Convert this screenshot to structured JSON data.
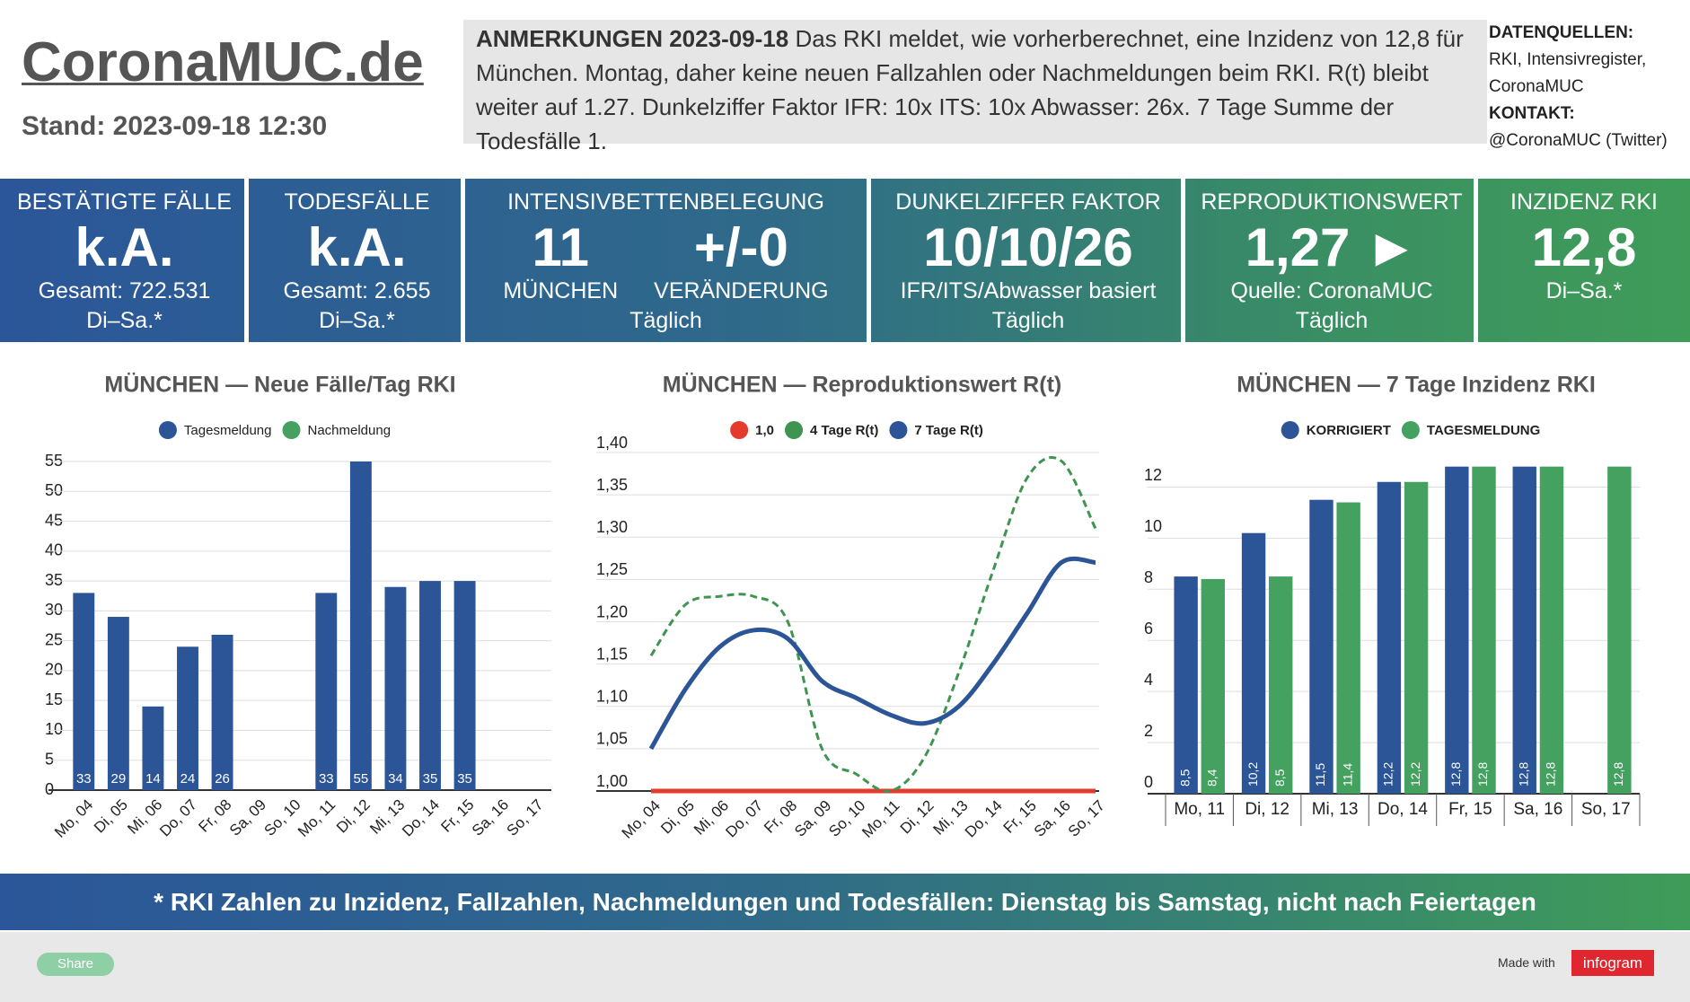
{
  "header": {
    "title": "CoronaMUC.de",
    "stand": "Stand: 2023-09-18 12:30"
  },
  "notes": {
    "heading": "ANMERKUNGEN 2023-09-18",
    "text": "Das RKI meldet, wie vorherberechnet, eine Inzidenz von 12,8 für München. Montag, daher keine neuen Fallzahlen oder Nachmeldungen beim RKI. R(t) bleibt weiter auf 1.27. Dunkelziffer Faktor IFR: 10x ITS: 10x Abwasser: 26x. 7 Tage Summe der Todesfälle 1."
  },
  "sources": {
    "label": "DATENQUELLEN:",
    "text": "RKI, Intensivregister, CoronaMUC",
    "contact_label": "KONTAKT:",
    "contact": "@CoronaMUC (Twitter)"
  },
  "tiles": [
    {
      "title": "BESTÄTIGTE FÄLLE",
      "value": "k.A.",
      "lines": [
        "Gesamt: 722.531",
        "Di–Sa.*"
      ]
    },
    {
      "title": "TODESFÄLLE",
      "value": "k.A.",
      "lines": [
        "Gesamt: 2.655",
        "Di–Sa.*"
      ]
    },
    {
      "title": "INTENSIVBETTENBELEGUNG",
      "values": [
        {
          "value": "11",
          "label": "MÜNCHEN"
        },
        {
          "value": "+/-0",
          "label": "VERÄNDERUNG"
        }
      ],
      "lines": [
        "Täglich"
      ]
    },
    {
      "title": "DUNKELZIFFER FAKTOR",
      "value": "10/10/26",
      "lines": [
        "IFR/ITS/Abwasser basiert",
        "Täglich"
      ]
    },
    {
      "title": "REPRODUKTIONSWERT",
      "value": "1,27 ►",
      "lines": [
        "Quelle: CoronaMUC",
        "Täglich"
      ]
    },
    {
      "title": "INZIDENZ RKI",
      "value": "12,8",
      "lines": [
        "Di–Sa.*"
      ]
    }
  ],
  "chart_data": [
    {
      "type": "bar",
      "title": "MÜNCHEN — Neue Fälle/Tag RKI",
      "stacked": true,
      "grid": true,
      "categories": [
        "Mo, 04",
        "Di, 05",
        "Mi, 06",
        "Do, 07",
        "Fr, 08",
        "Sa, 09",
        "So, 10",
        "Mo, 11",
        "Di, 12",
        "Mi, 13",
        "Do, 14",
        "Fr, 15",
        "Sa, 16",
        "So, 17"
      ],
      "series": [
        {
          "name": "Tagesmeldung",
          "color": "#2c5597",
          "values": [
            33,
            29,
            14,
            24,
            26,
            null,
            null,
            33,
            55,
            34,
            35,
            35,
            null,
            null
          ]
        },
        {
          "name": "Nachmeldung",
          "color": "#45a160",
          "values": [
            null,
            null,
            null,
            null,
            null,
            null,
            null,
            null,
            null,
            null,
            null,
            null,
            null,
            null
          ]
        }
      ],
      "ylim": [
        0,
        55
      ],
      "yticks": [
        0,
        5,
        10,
        15,
        20,
        25,
        30,
        35,
        40,
        45,
        50,
        55
      ]
    },
    {
      "type": "line",
      "title": "MÜNCHEN — Reproduktionswert R(t)",
      "grid": true,
      "categories": [
        "Mo, 04",
        "Di, 05",
        "Mi, 06",
        "Do, 07",
        "Fr, 08",
        "Sa, 09",
        "So, 10",
        "Mo, 11",
        "Di, 12",
        "Mi, 13",
        "Do, 14",
        "Fr, 15",
        "Sa, 16",
        "So, 17"
      ],
      "series": [
        {
          "name": "1,0",
          "color": "#e53b2c",
          "style": "solid",
          "values": [
            1,
            1,
            1,
            1,
            1,
            1,
            1,
            1,
            1,
            1,
            1,
            1,
            1,
            1
          ]
        },
        {
          "name": "4 Tage R(t)",
          "color": "#3e9450",
          "style": "dashed",
          "values": [
            1.16,
            1.22,
            1.23,
            1.23,
            1.2,
            1.05,
            1.02,
            1.0,
            1.04,
            1.14,
            1.26,
            1.37,
            1.39,
            1.31
          ]
        },
        {
          "name": "7 Tage R(t)",
          "color": "#2c5597",
          "style": "solid",
          "values": [
            1.05,
            1.12,
            1.17,
            1.19,
            1.18,
            1.13,
            1.11,
            1.09,
            1.08,
            1.1,
            1.15,
            1.21,
            1.27,
            1.27
          ]
        }
      ],
      "ylim": [
        1.0,
        1.4
      ],
      "yticks": [
        {
          "value": 1.0,
          "label": "1,00"
        },
        {
          "value": 1.05,
          "label": "1,05"
        },
        {
          "value": 1.1,
          "label": "1,10"
        },
        {
          "value": 1.15,
          "label": "1,15"
        },
        {
          "value": 1.2,
          "label": "1,20"
        },
        {
          "value": 1.25,
          "label": "1,25"
        },
        {
          "value": 1.3,
          "label": "1,30"
        },
        {
          "value": 1.35,
          "label": "1,35"
        },
        {
          "value": 1.4,
          "label": "1,40"
        }
      ]
    },
    {
      "type": "bar",
      "title": "MÜNCHEN — 7 Tage Inzidenz RKI",
      "stacked": false,
      "grid": true,
      "categories": [
        "Mo, 11",
        "Di, 12",
        "Mi, 13",
        "Do, 14",
        "Fr, 15",
        "Sa, 16",
        "So, 17"
      ],
      "series": [
        {
          "name": "KORRIGIERT",
          "color": "#2c5597",
          "values": [
            8.5,
            10.2,
            11.5,
            12.2,
            12.8,
            12.8,
            null
          ],
          "value_labels": [
            "8,5",
            "10,2",
            "11,5",
            "12,2",
            "12,8",
            "12,8",
            null
          ]
        },
        {
          "name": "TAGESMELDUNG",
          "color": "#45a160",
          "values": [
            8.4,
            8.5,
            11.4,
            12.2,
            12.8,
            12.8,
            12.8
          ],
          "value_labels": [
            "8,4",
            "8,5",
            "11,4",
            "12,2",
            "12,8",
            "12,8",
            "12,8"
          ]
        }
      ],
      "ylim": [
        0,
        13
      ],
      "yticks": [
        0,
        2,
        4,
        6,
        8,
        10,
        12
      ]
    }
  ],
  "footer": {
    "note": "* RKI Zahlen zu Inzidenz, Fallzahlen, Nachmeldungen und Todesfällen: Dienstag bis Samstag, nicht nach Feiertagen",
    "share": "Share",
    "made_with": "Made with",
    "brand": "infogram"
  }
}
